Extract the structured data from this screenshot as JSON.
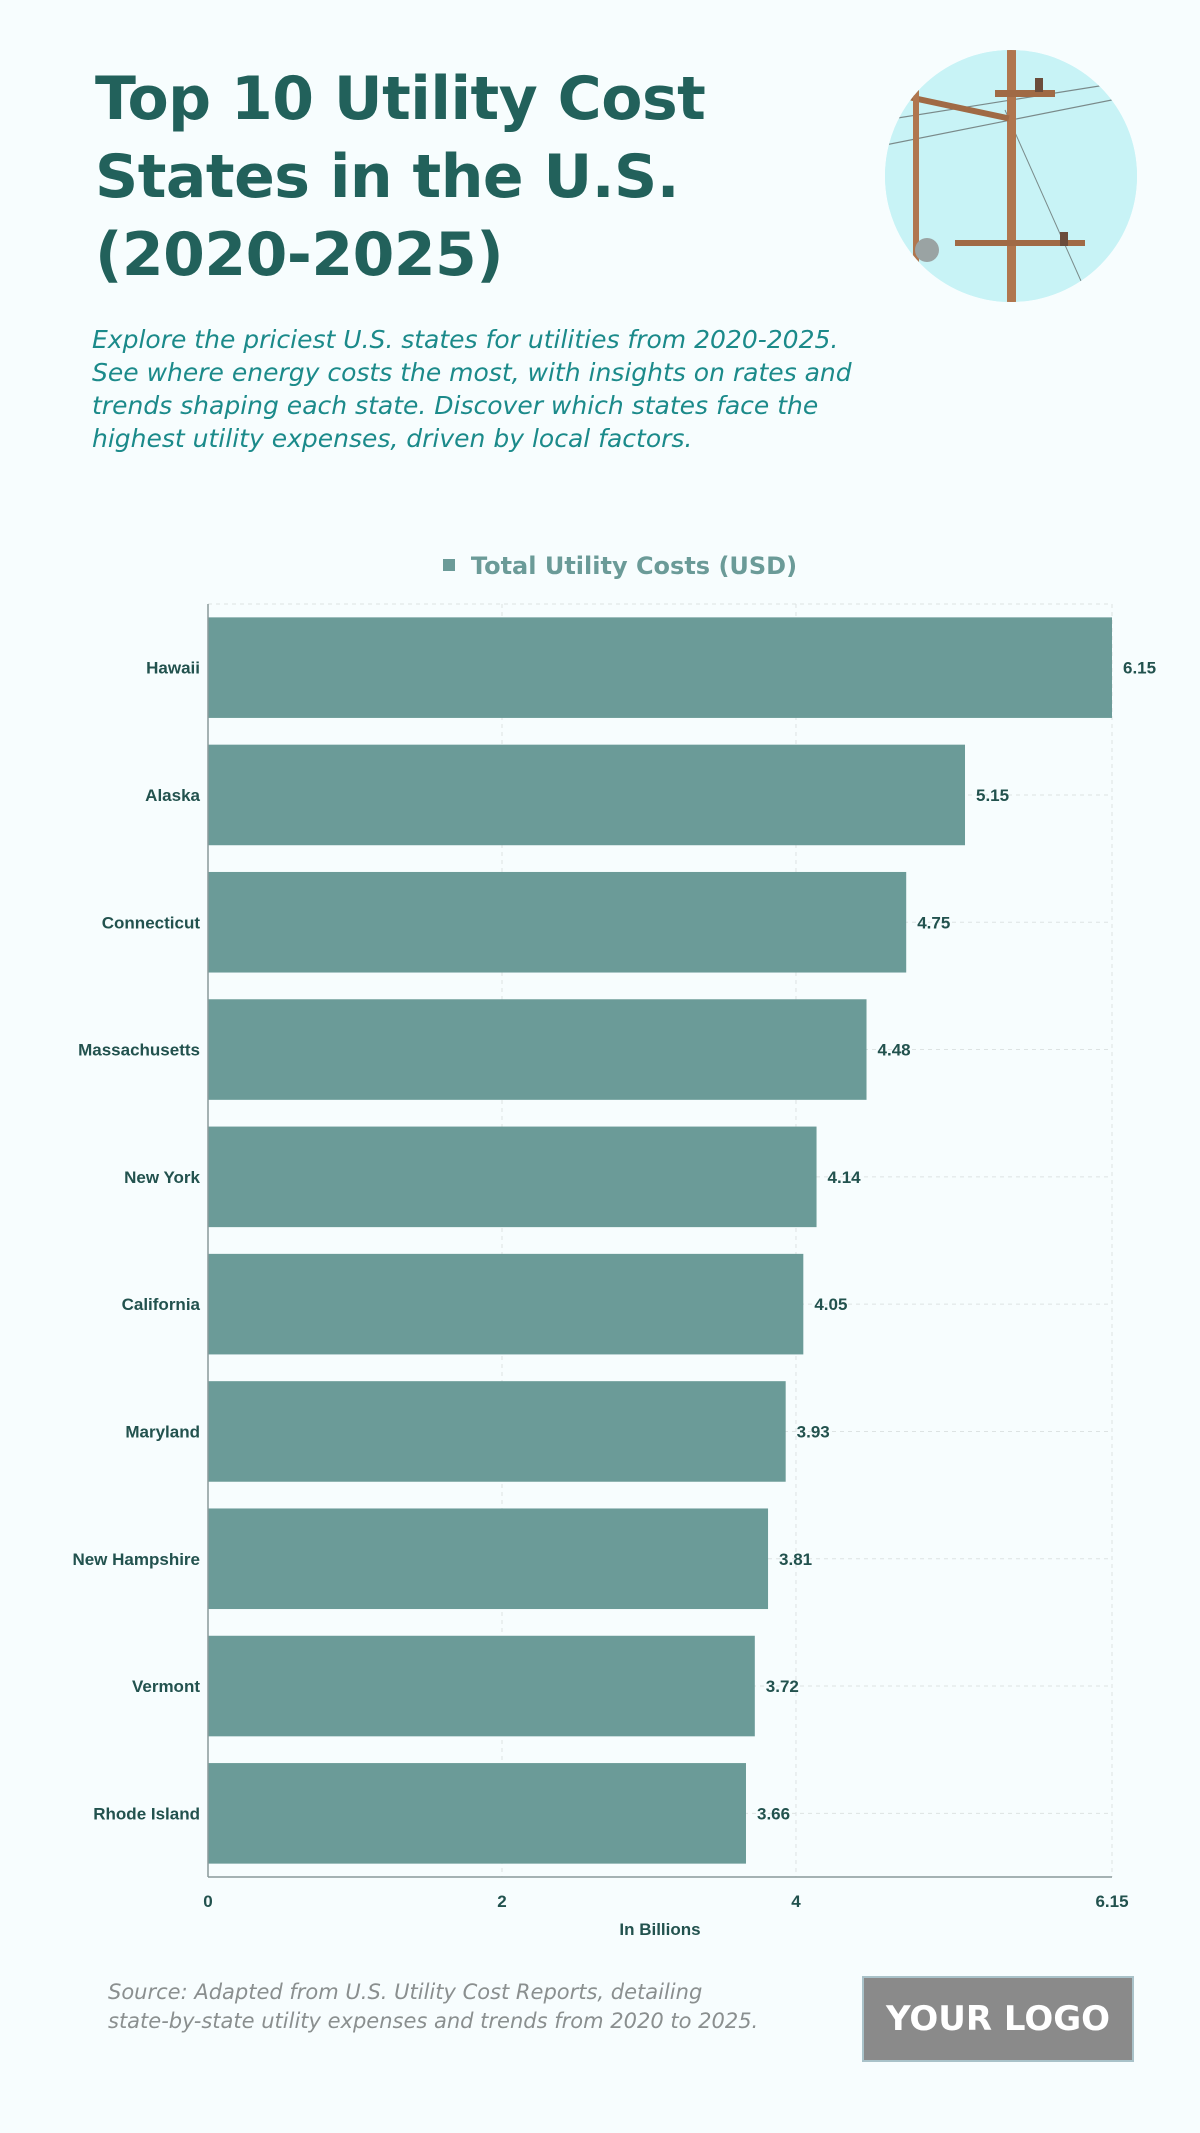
{
  "header": {
    "title": "Top 10 Utility Cost States in the U.S. (2020-2025)",
    "subtitle": "Explore the priciest U.S. states for utilities from 2020-2025. See where energy costs the most, with insights on rates and trends shaping each state. Discover which states face the highest utility expenses, driven by local factors."
  },
  "chart_data": {
    "type": "bar",
    "orientation": "horizontal",
    "categories": [
      "Hawaii",
      "Alaska",
      "Connecticut",
      "Massachusetts",
      "New York",
      "California",
      "Maryland",
      "New Hampshire",
      "Vermont",
      "Rhode Island"
    ],
    "series": [
      {
        "name": "Total Utility Costs (USD)",
        "values": [
          6.15,
          5.15,
          4.75,
          4.48,
          4.14,
          4.05,
          3.93,
          3.81,
          3.72,
          3.66
        ]
      }
    ],
    "value_labels": [
      "6.15",
      "5.15",
      "4.75",
      "4.48",
      "4.14",
      "4.05",
      "3.93",
      "3.81",
      "3.72",
      "3.66"
    ],
    "xlabel": "In Billions",
    "xlim": [
      0,
      6.15
    ],
    "x_ticks": [
      0,
      2,
      4,
      6.15
    ],
    "x_tick_labels": [
      "0",
      "2",
      "4",
      "6.15"
    ],
    "legend_position": "top-center",
    "grid": true,
    "bar_color": "#6b9b98"
  },
  "footer": {
    "source": "Source: Adapted from U.S. Utility Cost Reports, detailing state-by-state utility expenses and trends from 2020 to 2025.",
    "logo_text": "YOUR LOGO"
  },
  "icons": {
    "header_image": "utility-pole-photo"
  }
}
